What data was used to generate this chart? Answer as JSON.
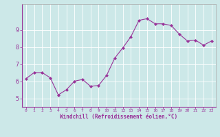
{
  "x": [
    0,
    1,
    2,
    3,
    4,
    5,
    6,
    7,
    8,
    9,
    10,
    11,
    12,
    13,
    14,
    15,
    16,
    17,
    18,
    19,
    20,
    21,
    22,
    23
  ],
  "y": [
    6.15,
    6.5,
    6.5,
    6.2,
    5.2,
    5.5,
    6.0,
    6.1,
    5.7,
    5.75,
    6.35,
    7.35,
    7.95,
    8.6,
    9.55,
    9.65,
    9.35,
    9.35,
    9.25,
    8.75,
    8.35,
    8.4,
    8.1,
    8.35
  ],
  "line_color": "#993399",
  "marker": "D",
  "marker_size": 2.0,
  "bg_color": "#cce8e8",
  "grid_color": "#b0d8d8",
  "xlabel": "Windchill (Refroidissement éolien,°C)",
  "xlabel_color": "#993399",
  "tick_color": "#993399",
  "spine_color": "#993399",
  "ylim": [
    4.5,
    10.5
  ],
  "xlim": [
    -0.5,
    23.5
  ],
  "yticks": [
    5,
    6,
    7,
    8,
    9
  ],
  "xticks": [
    0,
    1,
    2,
    3,
    4,
    5,
    6,
    7,
    8,
    9,
    10,
    11,
    12,
    13,
    14,
    15,
    16,
    17,
    18,
    19,
    20,
    21,
    22,
    23
  ]
}
